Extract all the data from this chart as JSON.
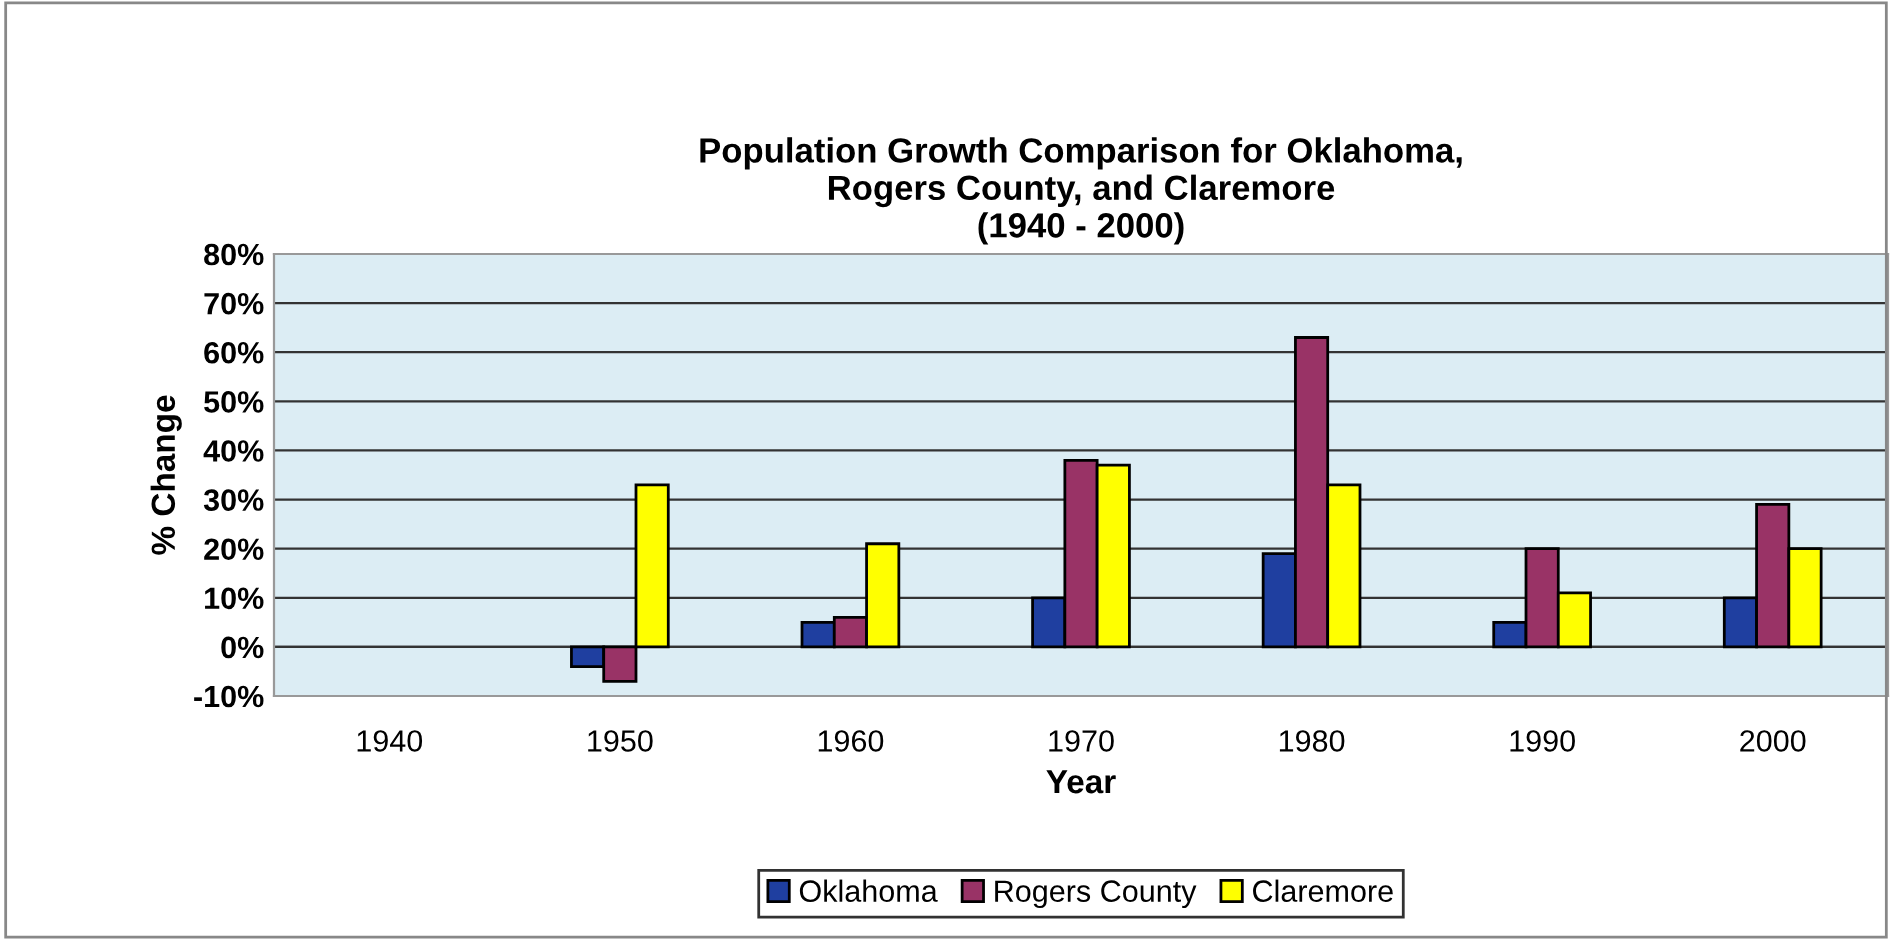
{
  "chart_data": {
    "type": "bar",
    "title": "Population Growth Comparison for Oklahoma,\nRogers County, and Claremore\n(1940 - 2000)",
    "xlabel": "Year",
    "ylabel": "% Change",
    "categories": [
      "1940",
      "1950",
      "1960",
      "1970",
      "1980",
      "1990",
      "2000"
    ],
    "series": [
      {
        "name": "Oklahoma",
        "color": "#1f3fa0",
        "values": [
          null,
          -4,
          5,
          10,
          19,
          5,
          10
        ]
      },
      {
        "name": "Rogers County",
        "color": "#993366",
        "values": [
          null,
          -7,
          6,
          38,
          63,
          20,
          29
        ]
      },
      {
        "name": "Claremore",
        "color": "#ffff00",
        "values": [
          null,
          33,
          21,
          37,
          33,
          11,
          20
        ]
      }
    ],
    "ylim": [
      -10,
      80
    ],
    "yticks": [
      {
        "value": -10,
        "label": "-10%"
      },
      {
        "value": 0,
        "label": "0%"
      },
      {
        "value": 10,
        "label": "10%"
      },
      {
        "value": 20,
        "label": "20%"
      },
      {
        "value": 30,
        "label": "30%"
      },
      {
        "value": 40,
        "label": "40%"
      },
      {
        "value": 50,
        "label": "50%"
      },
      {
        "value": 60,
        "label": "60%"
      },
      {
        "value": 70,
        "label": "70%"
      },
      {
        "value": 80,
        "label": "80%"
      }
    ],
    "grid": "y",
    "legend": "bottom"
  }
}
